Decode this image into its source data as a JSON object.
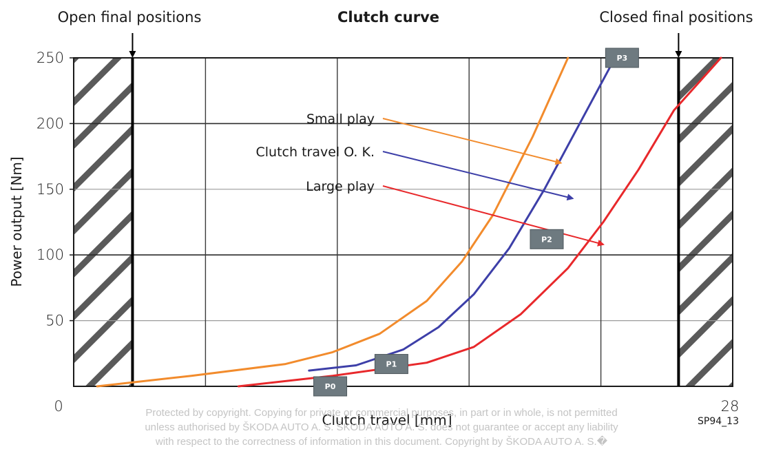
{
  "chart_data": {
    "type": "line",
    "title": "Clutch curve",
    "xlabel": "Clutch travel [mm]",
    "ylabel": "Power output [Nm]",
    "xlim": [
      0,
      28
    ],
    "ylim": [
      0,
      250
    ],
    "x_tick_labels": [
      "0",
      "28"
    ],
    "y_ticks": [
      50,
      100,
      150,
      200,
      250
    ],
    "grid": true,
    "top_notes": {
      "left": "Open final positions",
      "right": "Closed final positions"
    },
    "final_position_markers_x": [
      2.5,
      25.7
    ],
    "hatched_regions": [
      [
        0,
        2.5
      ],
      [
        25.7,
        28
      ]
    ],
    "series": [
      {
        "label": "Small play",
        "color": "#f28b2c",
        "x": [
          1,
          5,
          9,
          11,
          13,
          15,
          16.5,
          17.8,
          19.5,
          21
        ],
        "y": [
          0,
          8,
          17,
          26,
          40,
          65,
          95,
          130,
          190,
          250
        ]
      },
      {
        "label": "Clutch travel O. K.",
        "color": "#3d3fa8",
        "x": [
          10,
          12,
          14,
          15.5,
          17,
          18.5,
          20,
          21.5,
          23
        ],
        "y": [
          12,
          16,
          28,
          45,
          70,
          105,
          150,
          200,
          250
        ]
      },
      {
        "label": "Large play",
        "color": "#e8282b",
        "x": [
          7,
          11,
          15,
          17,
          19,
          21,
          22.5,
          24,
          25.5,
          27.5
        ],
        "y": [
          0,
          8,
          18,
          30,
          55,
          90,
          125,
          165,
          210,
          250
        ]
      }
    ],
    "annotations": [
      {
        "text": "Small play",
        "series": 0,
        "arrow_to": [
          20.7,
          170
        ]
      },
      {
        "text": "Clutch travel O. K.",
        "series": 1,
        "arrow_to": [
          21.2,
          143
        ]
      },
      {
        "text": "Large play",
        "series": 2,
        "arrow_to": [
          22.5,
          108
        ]
      }
    ],
    "points": [
      {
        "label": "P0",
        "x": 10.9,
        "y": 0
      },
      {
        "label": "P1",
        "x": 13.5,
        "y": 17
      },
      {
        "label": "P2",
        "x": 20.1,
        "y": 112
      },
      {
        "label": "P3",
        "x": 23.3,
        "y": 250
      }
    ],
    "reference": "SP94_13"
  },
  "watermark": [
    "Protected by copyright. Copying for private or commercial purposes, in part or in whole, is not permitted",
    "unless authorised by ŠKODA AUTO A. S. ŠKODA AUTO A. S. does not guarantee or accept any liability",
    "with respect to the correctness of information in this document. Copyright by ŠKODA AUTO A. S.�"
  ]
}
